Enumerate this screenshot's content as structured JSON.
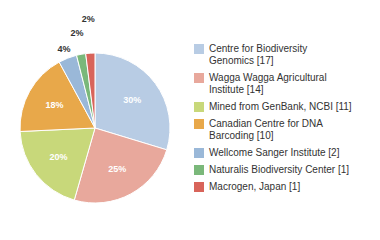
{
  "chart_data": {
    "type": "pie",
    "categories": [
      "Centre for Biodiversity\nGenomics [17]",
      "Wagga Wagga Agricultural\nInstitute [14]",
      "Mined from GenBank, NCBI [11]",
      "Canadian Centre for DNA\nBarcoding [10]",
      "Wellcome Sanger Institute [2]",
      "Naturalis Biodiversity Center [1]",
      "Macrogen, Japan [1]"
    ],
    "values": [
      30,
      25,
      20,
      18,
      4,
      2,
      2
    ],
    "value_labels": [
      "30%",
      "25%",
      "20%",
      "18%",
      "4%",
      "2%",
      "2%"
    ],
    "colors": [
      "#b8cce4",
      "#e8a89c",
      "#c8d87a",
      "#e8a84a",
      "#9ab8d8",
      "#7ab87a",
      "#d8645a"
    ],
    "data_labels": true,
    "legend": "right"
  }
}
